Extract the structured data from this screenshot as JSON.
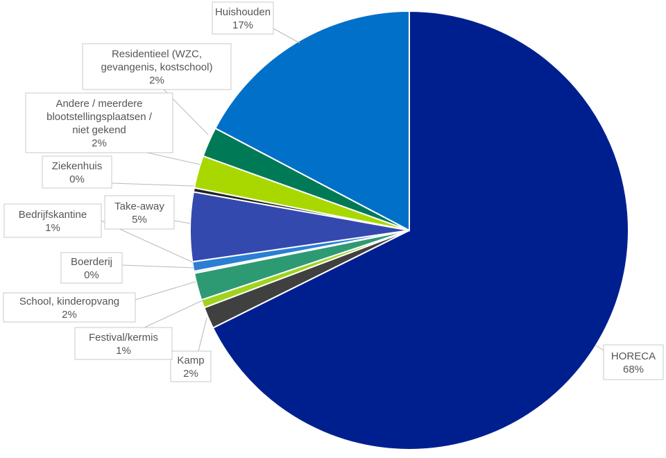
{
  "chart_data": {
    "type": "pie",
    "slices": [
      {
        "label": "HORECA",
        "value_label": "68%",
        "value": 67.7,
        "color": "#001f8f"
      },
      {
        "label": "Kamp",
        "value_label": "2%",
        "value": 1.6,
        "color": "#404040"
      },
      {
        "label": "Festival/kermis",
        "value_label": "1%",
        "value": 0.6,
        "color": "#9fd31d"
      },
      {
        "label": "School, kinderopvang",
        "value_label": "2%",
        "value": 2.0,
        "color": "#2e9a73"
      },
      {
        "label": "Boerderij",
        "value_label": "0%",
        "value": 0.15,
        "color": "#d8d8d8"
      },
      {
        "label": "Bedrijfskantine",
        "value_label": "1%",
        "value": 0.7,
        "color": "#2a7fd4"
      },
      {
        "label": "Take-away",
        "value_label": "5%",
        "value": 5.1,
        "color": "#3449ad"
      },
      {
        "label": "Ziekenhuis",
        "value_label": "0%",
        "value": 0.3,
        "color": "#222222"
      },
      {
        "label": "Andere / meerdere blootstellingsplaatsen / niet gekend",
        "value_label": "2%",
        "value": 2.4,
        "color": "#a9d800"
      },
      {
        "label": "Residentieel (WZC, gevangenis, kostschool)",
        "value_label": "2%",
        "value": 2.2,
        "color": "#007a56"
      },
      {
        "label": "Huishouden",
        "value_label": "17%",
        "value": 17.3,
        "color": "#0070c9"
      }
    ]
  }
}
